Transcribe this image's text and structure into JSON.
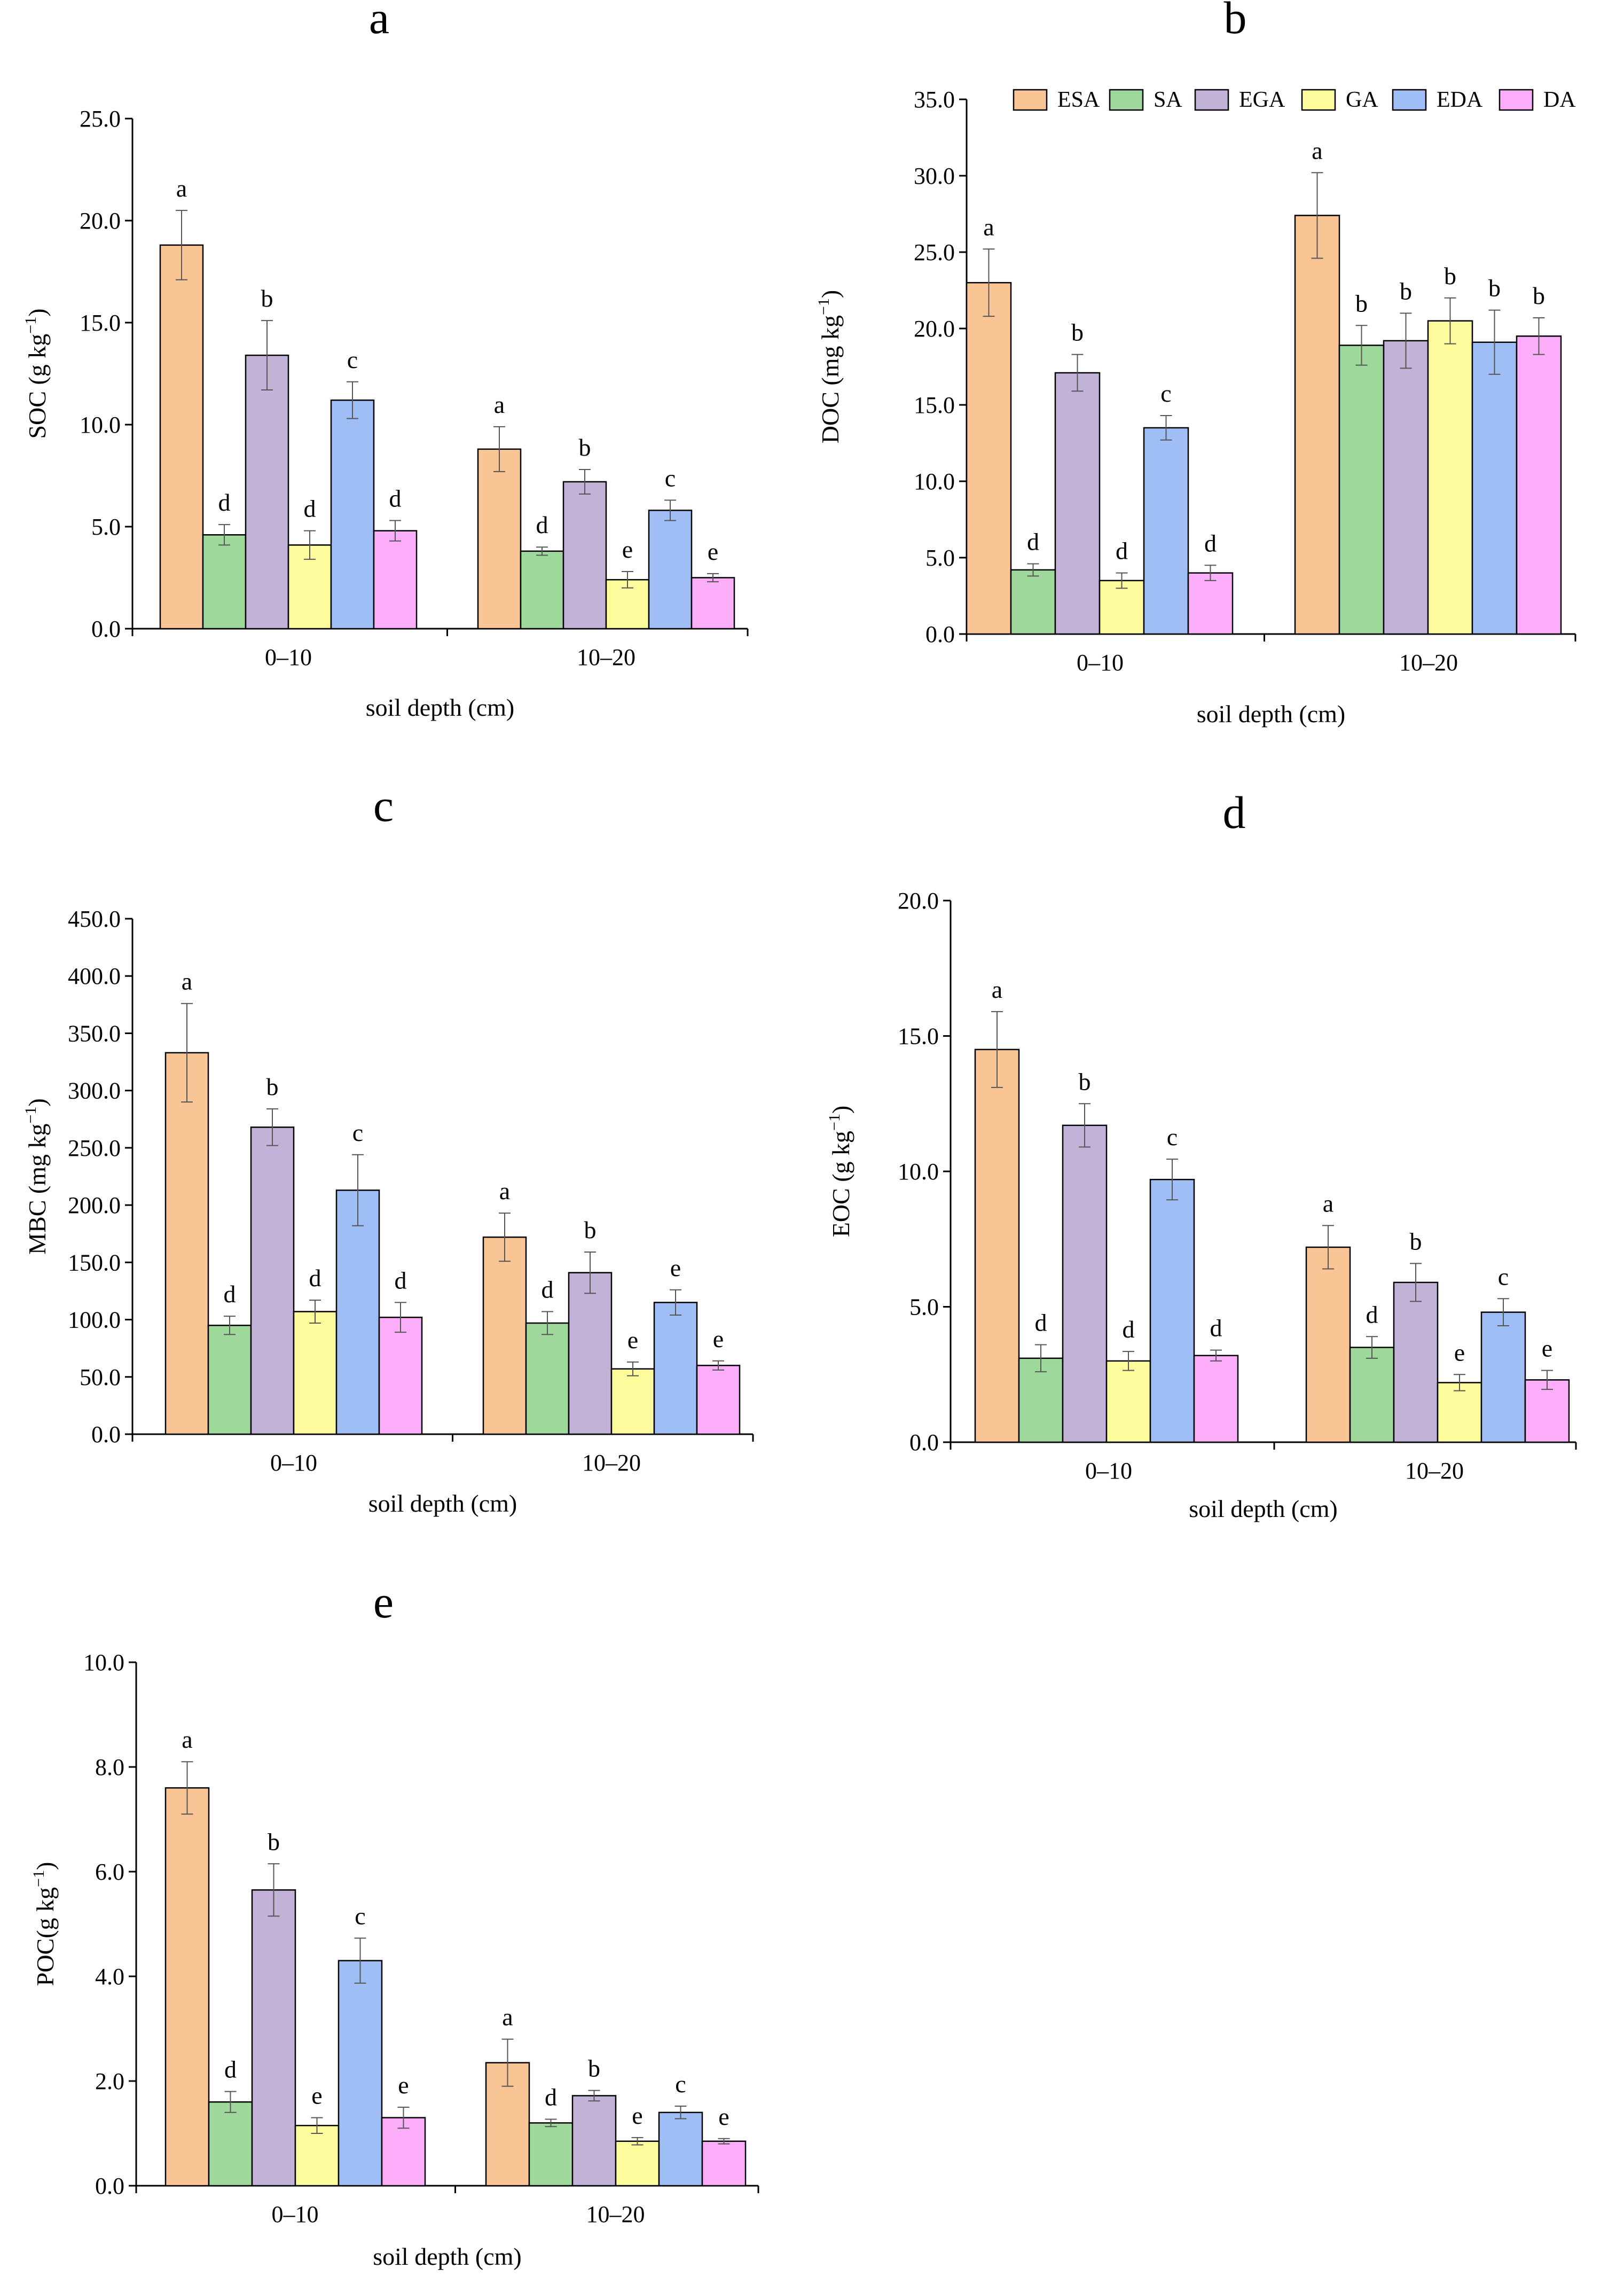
{
  "colors": {
    "ESA": "#f9c594",
    "SA": "#9ed89b",
    "EGA": "#c2b2d8",
    "GA": "#fefb9c",
    "EDA": "#9ebef5",
    "DA": "#fcaefb"
  },
  "legend": {
    "items": [
      {
        "key": "ESA",
        "label": "ESA"
      },
      {
        "key": "SA",
        "label": "SA"
      },
      {
        "key": "EGA",
        "label": "EGA"
      },
      {
        "key": "GA",
        "label": "GA"
      },
      {
        "key": "EDA",
        "label": "EDA"
      },
      {
        "key": "DA",
        "label": "DA"
      }
    ]
  },
  "chart_data": [
    {
      "panel": "a",
      "type": "bar",
      "ylabel": {
        "main": "SOC (g kg",
        "sup": "−1",
        "tail": ")"
      },
      "xlabel": "soil depth (cm)",
      "categories": [
        "0–10",
        "10–20"
      ],
      "ylim": [
        0,
        25
      ],
      "yticks": [
        "0.0",
        "5.0",
        "10.0",
        "15.0",
        "20.0",
        "25.0"
      ],
      "series": [
        {
          "name": "ESA",
          "values": [
            18.8,
            8.8
          ],
          "errors": [
            1.7,
            1.1
          ],
          "letters": [
            "a",
            "a"
          ]
        },
        {
          "name": "SA",
          "values": [
            4.6,
            3.8
          ],
          "errors": [
            0.5,
            0.2
          ],
          "letters": [
            "d",
            "d"
          ]
        },
        {
          "name": "EGA",
          "values": [
            13.4,
            7.2
          ],
          "errors": [
            1.7,
            0.6
          ],
          "letters": [
            "b",
            "b"
          ]
        },
        {
          "name": "GA",
          "values": [
            4.1,
            2.4
          ],
          "errors": [
            0.7,
            0.4
          ],
          "letters": [
            "d",
            "e"
          ]
        },
        {
          "name": "EDA",
          "values": [
            11.2,
            5.8
          ],
          "errors": [
            0.9,
            0.5
          ],
          "letters": [
            "c",
            "c"
          ]
        },
        {
          "name": "DA",
          "values": [
            4.8,
            2.5
          ],
          "errors": [
            0.5,
            0.2
          ],
          "letters": [
            "d",
            "e"
          ]
        }
      ]
    },
    {
      "panel": "b",
      "type": "bar",
      "ylabel": {
        "main": "DOC (mg kg",
        "sup": "−1",
        "tail": ")"
      },
      "xlabel": "soil depth (cm)",
      "categories": [
        "0–10",
        "10–20"
      ],
      "ylim": [
        0,
        35
      ],
      "yticks": [
        "0.0",
        "5.0",
        "10.0",
        "15.0",
        "20.0",
        "25.0",
        "30.0",
        "35.0"
      ],
      "series": [
        {
          "name": "ESA",
          "values": [
            23.0,
            27.4
          ],
          "errors": [
            2.2,
            2.8
          ],
          "letters": [
            "a",
            "a"
          ]
        },
        {
          "name": "SA",
          "values": [
            4.2,
            18.9
          ],
          "errors": [
            0.4,
            1.3
          ],
          "letters": [
            "d",
            "b"
          ]
        },
        {
          "name": "EGA",
          "values": [
            17.1,
            19.2
          ],
          "errors": [
            1.2,
            1.8
          ],
          "letters": [
            "b",
            "b"
          ]
        },
        {
          "name": "GA",
          "values": [
            3.5,
            20.5
          ],
          "errors": [
            0.5,
            1.5
          ],
          "letters": [
            "d",
            "b"
          ]
        },
        {
          "name": "EDA",
          "values": [
            13.5,
            19.1
          ],
          "errors": [
            0.8,
            2.1
          ],
          "letters": [
            "c",
            "b"
          ]
        },
        {
          "name": "DA",
          "values": [
            4.0,
            19.5
          ],
          "errors": [
            0.5,
            1.2
          ],
          "letters": [
            "d",
            "b"
          ]
        }
      ]
    },
    {
      "panel": "c",
      "type": "bar",
      "ylabel": {
        "main": "MBC (mg kg",
        "sup": "−1",
        "tail": ")"
      },
      "xlabel": "soil depth (cm)",
      "categories": [
        "0–10",
        "10–20"
      ],
      "ylim": [
        0,
        450
      ],
      "yticks": [
        "0.0",
        "50.0",
        "100.0",
        "150.0",
        "200.0",
        "250.0",
        "300.0",
        "350.0",
        "400.0",
        "450.0"
      ],
      "series": [
        {
          "name": "ESA",
          "values": [
            333,
            172
          ],
          "errors": [
            43,
            21
          ],
          "letters": [
            "a",
            "a"
          ]
        },
        {
          "name": "SA",
          "values": [
            95,
            97
          ],
          "errors": [
            8,
            10
          ],
          "letters": [
            "d",
            "d"
          ]
        },
        {
          "name": "EGA",
          "values": [
            268,
            141
          ],
          "errors": [
            16,
            18
          ],
          "letters": [
            "b",
            "b"
          ]
        },
        {
          "name": "GA",
          "values": [
            107,
            57
          ],
          "errors": [
            10,
            6
          ],
          "letters": [
            "d",
            "e"
          ]
        },
        {
          "name": "EDA",
          "values": [
            213,
            115
          ],
          "errors": [
            31,
            11
          ],
          "letters": [
            "c",
            "e"
          ]
        },
        {
          "name": "DA",
          "values": [
            102,
            60
          ],
          "errors": [
            13,
            4
          ],
          "letters": [
            "d",
            "e"
          ]
        }
      ]
    },
    {
      "panel": "d",
      "type": "bar",
      "ylabel": {
        "main": "EOC (g kg",
        "sup": "−1",
        "tail": ")"
      },
      "xlabel": "soil depth (cm)",
      "categories": [
        "0–10",
        "10–20"
      ],
      "ylim": [
        0,
        20
      ],
      "yticks": [
        "0.0",
        "5.0",
        "10.0",
        "15.0",
        "20.0"
      ],
      "series": [
        {
          "name": "ESA",
          "values": [
            14.5,
            7.2
          ],
          "errors": [
            1.4,
            0.8
          ],
          "letters": [
            "a",
            "a"
          ]
        },
        {
          "name": "SA",
          "values": [
            3.1,
            3.5
          ],
          "errors": [
            0.5,
            0.4
          ],
          "letters": [
            "d",
            "d"
          ]
        },
        {
          "name": "EGA",
          "values": [
            11.7,
            5.9
          ],
          "errors": [
            0.8,
            0.7
          ],
          "letters": [
            "b",
            "b"
          ]
        },
        {
          "name": "GA",
          "values": [
            3.0,
            2.2
          ],
          "errors": [
            0.35,
            0.3
          ],
          "letters": [
            "d",
            "e"
          ]
        },
        {
          "name": "EDA",
          "values": [
            9.7,
            4.8
          ],
          "errors": [
            0.75,
            0.5
          ],
          "letters": [
            "c",
            "c"
          ]
        },
        {
          "name": "DA",
          "values": [
            3.2,
            2.3
          ],
          "errors": [
            0.2,
            0.35
          ],
          "letters": [
            "d",
            "e"
          ]
        }
      ]
    },
    {
      "panel": "e",
      "type": "bar",
      "ylabel": {
        "main": "POC(g kg",
        "sup": "−1",
        "tail": ")"
      },
      "xlabel": "soil depth (cm)",
      "categories": [
        "0–10",
        "10–20"
      ],
      "ylim": [
        0,
        10
      ],
      "yticks": [
        "0.0",
        "2.0",
        "4.0",
        "6.0",
        "8.0",
        "10.0"
      ],
      "series": [
        {
          "name": "ESA",
          "values": [
            7.6,
            2.35
          ],
          "errors": [
            0.5,
            0.45
          ],
          "letters": [
            "a",
            "a"
          ]
        },
        {
          "name": "SA",
          "values": [
            1.6,
            1.2
          ],
          "errors": [
            0.2,
            0.07
          ],
          "letters": [
            "d",
            "d"
          ]
        },
        {
          "name": "EGA",
          "values": [
            5.65,
            1.72
          ],
          "errors": [
            0.5,
            0.1
          ],
          "letters": [
            "b",
            "b"
          ]
        },
        {
          "name": "GA",
          "values": [
            1.15,
            0.85
          ],
          "errors": [
            0.15,
            0.07
          ],
          "letters": [
            "e",
            "e"
          ]
        },
        {
          "name": "EDA",
          "values": [
            4.3,
            1.4
          ],
          "errors": [
            0.43,
            0.12
          ],
          "letters": [
            "c",
            "c"
          ]
        },
        {
          "name": "DA",
          "values": [
            1.3,
            0.85
          ],
          "errors": [
            0.2,
            0.05
          ],
          "letters": [
            "e",
            "e"
          ]
        }
      ]
    }
  ]
}
